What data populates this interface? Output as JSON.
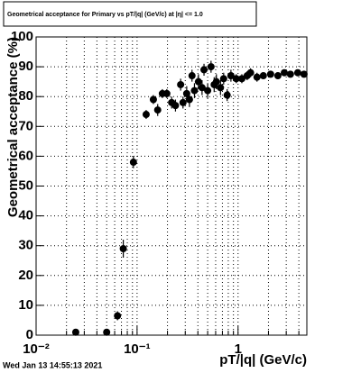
{
  "chart_data": {
    "type": "scatter",
    "title": "Geometrical acceptance for Primary vs pT/|q| (GeV/c) at |η| <= 1.0",
    "x_label": "pT/|q| (GeV/c)",
    "y_label": "Geometrical acceptance (%)",
    "timestamp": "Wed Jan 13 14:55:13 2021",
    "log_x": true,
    "grid": true,
    "color": "#000000",
    "xlim": [
      0.01,
      4.8
    ],
    "ylim": [
      0,
      100
    ],
    "xticks": [
      {
        "value": 0.01,
        "label": "10⁻²"
      },
      {
        "value": 0.1,
        "label": "10⁻¹"
      },
      1
    ],
    "xminor_ticks": [
      0.02,
      0.03,
      0.04,
      0.05,
      0.06,
      0.07,
      0.08,
      0.09,
      0.2,
      0.3,
      0.4,
      0.5,
      0.6,
      0.7,
      0.8,
      0.9,
      2,
      3,
      4
    ],
    "yticks": [
      0,
      10,
      20,
      30,
      40,
      50,
      60,
      70,
      80,
      90,
      100
    ],
    "x": [
      0.0247,
      0.05,
      0.064,
      0.073,
      0.092,
      0.123,
      0.145,
      0.16,
      0.178,
      0.197,
      0.22,
      0.24,
      0.27,
      0.285,
      0.31,
      0.33,
      0.35,
      0.37,
      0.405,
      0.44,
      0.46,
      0.5,
      0.54,
      0.58,
      0.61,
      0.67,
      0.72,
      0.78,
      0.85,
      0.96,
      1.09,
      1.23,
      1.33,
      1.54,
      1.78,
      2.1,
      2.48,
      2.87,
      3.3,
      3.9,
      4.5
    ],
    "y": [
      1,
      1,
      6.5,
      29,
      58,
      74,
      79,
      75.5,
      81,
      81,
      78,
      77,
      84,
      78,
      81,
      79,
      87,
      82,
      85,
      83,
      89,
      82,
      90,
      84,
      85,
      83,
      86,
      80.5,
      87,
      86,
      86,
      87,
      88,
      86.5,
      87,
      87.5,
      87,
      88,
      87.5,
      88,
      87.5
    ],
    "yerr": [
      0.5,
      0.5,
      1.5,
      3,
      2,
      1.5,
      1.5,
      2,
      1.5,
      1.5,
      2,
      2,
      2,
      2,
      2.5,
      2.5,
      2,
      2.5,
      2.5,
      2.5,
      2,
      2.5,
      2,
      2.5,
      2.5,
      2.5,
      2,
      2,
      2,
      1.5,
      1.5,
      1.5,
      1.5,
      1.5,
      1,
      1,
      1,
      1,
      1,
      1,
      1
    ]
  }
}
